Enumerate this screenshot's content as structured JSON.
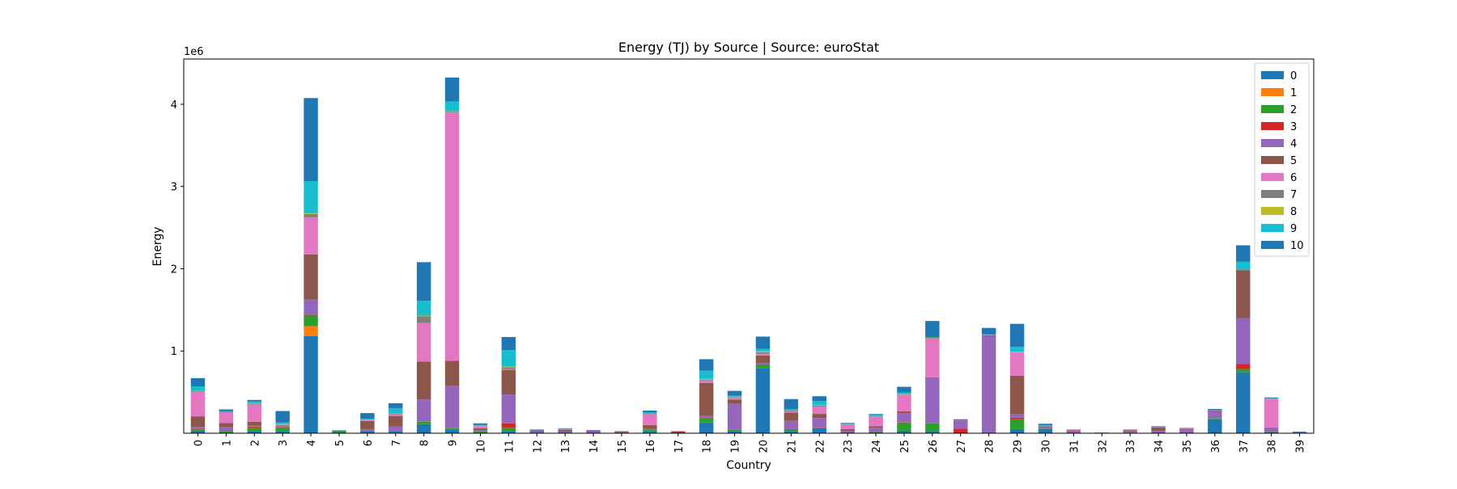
{
  "chart_data": {
    "type": "bar",
    "stacked": true,
    "title": "Energy (TJ) by Source | Source: euroStat",
    "xlabel": "Country",
    "ylabel": "Energy",
    "y_offset_label": "1e6",
    "ylim": [
      0,
      4.55
    ],
    "y_ticks": [
      1,
      2,
      3,
      4
    ],
    "legend_position": "top-right",
    "categories": [
      "0",
      "1",
      "2",
      "3",
      "4",
      "5",
      "6",
      "7",
      "8",
      "9",
      "10",
      "11",
      "12",
      "13",
      "14",
      "15",
      "16",
      "17",
      "18",
      "19",
      "20",
      "21",
      "22",
      "23",
      "24",
      "25",
      "26",
      "27",
      "28",
      "29",
      "30",
      "31",
      "32",
      "33",
      "34",
      "35",
      "36",
      "37",
      "38",
      "39"
    ],
    "series": [
      {
        "name": "0",
        "color": "#1f77b4",
        "values": [
          0.03,
          0.01,
          0.02,
          0.02,
          1.18,
          0.01,
          0.02,
          0.02,
          0.11,
          0.04,
          0.01,
          0.02,
          0.005,
          0.005,
          0.005,
          0.005,
          0.02,
          0.005,
          0.13,
          0.02,
          0.79,
          0.02,
          0.06,
          0.01,
          0.01,
          0.03,
          0.02,
          0.005,
          0.005,
          0.05,
          0.05,
          0.005,
          0.002,
          0.005,
          0.005,
          0.005,
          0.17,
          0.74,
          0.01,
          0.005
        ]
      },
      {
        "name": "1",
        "color": "#ff7f0e",
        "values": [
          0,
          0,
          0,
          0,
          0.12,
          0,
          0,
          0,
          0,
          0,
          0,
          0,
          0,
          0,
          0,
          0,
          0,
          0,
          0,
          0,
          0,
          0,
          0,
          0,
          0,
          0,
          0,
          0,
          0,
          0,
          0,
          0,
          0,
          0,
          0,
          0,
          0,
          0,
          0,
          0
        ]
      },
      {
        "name": "2",
        "color": "#2ca02c",
        "values": [
          0.02,
          0.01,
          0.05,
          0.05,
          0.13,
          0.01,
          0.01,
          0.01,
          0.03,
          0.02,
          0.01,
          0.05,
          0.005,
          0.005,
          0.005,
          0.005,
          0.02,
          0,
          0.05,
          0.02,
          0.04,
          0.03,
          0.01,
          0,
          0.005,
          0.1,
          0.1,
          0,
          0.005,
          0.12,
          0.005,
          0.005,
          0,
          0,
          0.005,
          0.005,
          0.01,
          0.04,
          0.005,
          0
        ]
      },
      {
        "name": "3",
        "color": "#d62728",
        "values": [
          0.005,
          0.005,
          0.01,
          0.005,
          0.005,
          0,
          0,
          0,
          0,
          0,
          0,
          0.05,
          0,
          0,
          0,
          0,
          0,
          0.01,
          0.01,
          0,
          0.005,
          0,
          0.005,
          0,
          0,
          0.005,
          0,
          0.05,
          0,
          0.02,
          0,
          0,
          0,
          0,
          0,
          0,
          0,
          0.06,
          0,
          0
        ]
      },
      {
        "name": "4",
        "color": "#9467bd",
        "values": [
          0.02,
          0.05,
          0.01,
          0.01,
          0.19,
          0,
          0.02,
          0.05,
          0.27,
          0.52,
          0.02,
          0.35,
          0.01,
          0.01,
          0.01,
          0.005,
          0.01,
          0,
          0.02,
          0.32,
          0.02,
          0.1,
          0.11,
          0.02,
          0.05,
          0.11,
          0.55,
          0.1,
          1.17,
          0.04,
          0.02,
          0.02,
          0.005,
          0.02,
          0.02,
          0.04,
          0.08,
          0.56,
          0.05,
          0.01
        ]
      },
      {
        "name": "5",
        "color": "#8c564b",
        "values": [
          0.13,
          0.05,
          0.05,
          0.01,
          0.55,
          0.01,
          0.1,
          0.13,
          0.46,
          0.3,
          0.02,
          0.3,
          0.01,
          0.02,
          0.01,
          0.005,
          0.05,
          0.005,
          0.4,
          0.05,
          0.09,
          0.1,
          0.05,
          0.02,
          0.02,
          0.02,
          0.01,
          0.005,
          0.01,
          0.47,
          0.01,
          0.005,
          0,
          0.01,
          0.04,
          0.005,
          0.01,
          0.58,
          0.005,
          0
        ]
      },
      {
        "name": "6",
        "color": "#e377c2",
        "values": [
          0.3,
          0.13,
          0.21,
          0.005,
          0.45,
          0,
          0.01,
          0.02,
          0.47,
          3.02,
          0.03,
          0.01,
          0,
          0.01,
          0.005,
          0,
          0.13,
          0,
          0.03,
          0.02,
          0.02,
          0.02,
          0.09,
          0.06,
          0.12,
          0.2,
          0.47,
          0,
          0.005,
          0.28,
          0.005,
          0.005,
          0,
          0.005,
          0.005,
          0.005,
          0.005,
          0,
          0.35,
          0
        ]
      },
      {
        "name": "7",
        "color": "#7f7f7f",
        "values": [
          0.01,
          0.005,
          0.01,
          0.005,
          0.04,
          0,
          0.005,
          0.01,
          0.08,
          0.01,
          0.005,
          0.02,
          0.005,
          0.005,
          0,
          0,
          0.005,
          0,
          0.01,
          0.01,
          0.02,
          0.01,
          0.01,
          0,
          0.005,
          0.005,
          0.005,
          0,
          0,
          0.005,
          0,
          0,
          0,
          0,
          0,
          0,
          0.005,
          0.01,
          0,
          0
        ]
      },
      {
        "name": "8",
        "color": "#bcbd22",
        "values": [
          0.005,
          0,
          0.005,
          0.005,
          0.01,
          0,
          0,
          0.005,
          0.01,
          0.005,
          0,
          0.01,
          0,
          0,
          0,
          0,
          0,
          0,
          0.01,
          0.005,
          0.01,
          0.005,
          0.005,
          0,
          0,
          0.005,
          0.005,
          0,
          0,
          0.005,
          0,
          0,
          0,
          0,
          0,
          0,
          0,
          0.005,
          0,
          0
        ]
      },
      {
        "name": "9",
        "color": "#17becf",
        "values": [
          0.05,
          0.01,
          0.02,
          0.02,
          0.39,
          0,
          0.01,
          0.06,
          0.18,
          0.12,
          0.005,
          0.2,
          0,
          0,
          0,
          0,
          0.02,
          0,
          0.1,
          0.01,
          0.03,
          0.01,
          0.05,
          0.005,
          0.02,
          0.02,
          0.005,
          0,
          0.005,
          0.06,
          0.005,
          0,
          0,
          0,
          0,
          0,
          0.005,
          0.09,
          0.005,
          0
        ]
      },
      {
        "name": "10",
        "color": "#1f77b4",
        "values": [
          0.1,
          0.02,
          0.02,
          0.14,
          1.01,
          0.005,
          0.07,
          0.06,
          0.47,
          0.29,
          0.02,
          0.16,
          0.01,
          0.005,
          0.005,
          0.005,
          0.02,
          0.005,
          0.14,
          0.06,
          0.15,
          0.12,
          0.06,
          0.01,
          0.005,
          0.07,
          0.2,
          0.01,
          0.08,
          0.28,
          0.02,
          0.005,
          0.002,
          0.005,
          0.01,
          0.005,
          0.01,
          0.2,
          0.01,
          0.005
        ]
      }
    ]
  }
}
